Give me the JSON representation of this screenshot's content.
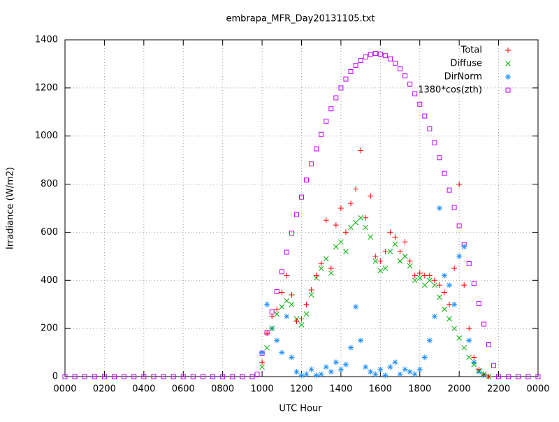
{
  "chart_data": {
    "type": "scatter",
    "title": "embrapa_MFR_Day20131105.txt",
    "xlabel": "UTC Hour",
    "ylabel": "Irradiance (W/m2)",
    "xlim": [
      0,
      24
    ],
    "xticks": [
      {
        "value": 0,
        "label": "0000"
      },
      {
        "value": 2,
        "label": "0200"
      },
      {
        "value": 4,
        "label": "0400"
      },
      {
        "value": 6,
        "label": "0600"
      },
      {
        "value": 8,
        "label": "0800"
      },
      {
        "value": 10,
        "label": "1000"
      },
      {
        "value": 12,
        "label": "1200"
      },
      {
        "value": 14,
        "label": "1400"
      },
      {
        "value": 16,
        "label": "1600"
      },
      {
        "value": 18,
        "label": "1800"
      },
      {
        "value": 20,
        "label": "2000"
      },
      {
        "value": 22,
        "label": "2200"
      },
      {
        "value": 24,
        "label": "0000"
      }
    ],
    "ylim": [
      0,
      1400
    ],
    "yticks": [
      0,
      200,
      400,
      600,
      800,
      1000,
      1200,
      1400
    ],
    "grid": true,
    "legend": "top-right",
    "series": [
      {
        "name": "Total",
        "color": "#ff0000",
        "marker": "plus",
        "x": [
          10.0,
          10.25,
          10.5,
          10.75,
          11.0,
          11.25,
          11.5,
          11.75,
          12.0,
          12.25,
          12.5,
          12.75,
          13.0,
          13.25,
          13.5,
          13.75,
          14.0,
          14.25,
          14.5,
          14.75,
          15.0,
          15.25,
          15.5,
          15.75,
          16.0,
          16.25,
          16.5,
          16.75,
          17.0,
          17.25,
          17.5,
          17.75,
          18.0,
          18.25,
          18.5,
          18.75,
          19.0,
          19.25,
          19.5,
          19.75,
          20.0,
          20.25,
          20.5,
          20.75,
          21.0,
          21.25,
          21.5
        ],
        "values": [
          60,
          180,
          250,
          280,
          350,
          420,
          340,
          230,
          240,
          300,
          360,
          420,
          470,
          650,
          450,
          630,
          700,
          600,
          720,
          780,
          940,
          660,
          750,
          500,
          480,
          520,
          600,
          580,
          520,
          560,
          480,
          420,
          430,
          420,
          420,
          400,
          380,
          350,
          300,
          450,
          800,
          380,
          200,
          80,
          30,
          10,
          0
        ]
      },
      {
        "name": "Diffuse",
        "color": "#00b000",
        "marker": "cross",
        "x": [
          10.0,
          10.25,
          10.5,
          10.75,
          11.0,
          11.25,
          11.5,
          11.75,
          12.0,
          12.25,
          12.5,
          12.75,
          13.0,
          13.25,
          13.5,
          13.75,
          14.0,
          14.25,
          14.5,
          14.75,
          15.0,
          15.25,
          15.5,
          15.75,
          16.0,
          16.25,
          16.5,
          16.75,
          17.0,
          17.25,
          17.5,
          17.75,
          18.0,
          18.25,
          18.5,
          18.75,
          19.0,
          19.25,
          19.5,
          19.75,
          20.0,
          20.25,
          20.5,
          20.75,
          21.0,
          21.25,
          21.5
        ],
        "values": [
          40,
          120,
          200,
          260,
          290,
          315,
          300,
          240,
          215,
          260,
          340,
          410,
          450,
          490,
          430,
          540,
          560,
          520,
          620,
          640,
          660,
          620,
          580,
          480,
          440,
          450,
          520,
          550,
          480,
          500,
          460,
          400,
          410,
          380,
          400,
          380,
          330,
          280,
          240,
          200,
          160,
          120,
          80,
          50,
          25,
          10,
          0
        ]
      },
      {
        "name": "DirNorm",
        "color": "#1e90ff",
        "marker": "star",
        "x": [
          10.0,
          10.25,
          10.5,
          10.75,
          11.0,
          11.25,
          11.5,
          11.75,
          12.0,
          12.25,
          12.5,
          12.75,
          13.0,
          13.25,
          13.5,
          13.75,
          14.0,
          14.25,
          14.5,
          14.75,
          15.0,
          15.25,
          15.5,
          15.75,
          16.0,
          16.25,
          16.5,
          16.75,
          17.0,
          17.25,
          17.5,
          17.75,
          18.0,
          18.25,
          18.5,
          18.75,
          19.0,
          19.25,
          19.5,
          19.75,
          20.0,
          20.25,
          20.5,
          20.75,
          21.0,
          21.25,
          21.5
        ],
        "values": [
          100,
          300,
          200,
          150,
          100,
          250,
          80,
          20,
          5,
          10,
          30,
          5,
          10,
          40,
          20,
          60,
          30,
          50,
          120,
          290,
          150,
          40,
          20,
          10,
          30,
          5,
          40,
          60,
          10,
          30,
          20,
          10,
          30,
          80,
          150,
          250,
          700,
          420,
          380,
          300,
          500,
          540,
          150,
          60,
          20,
          5,
          0
        ]
      },
      {
        "name": "1380*cos(zth)",
        "color": "#c000ff",
        "marker": "square",
        "x": [
          0,
          0.5,
          1,
          1.5,
          2,
          2.5,
          3,
          3.5,
          4,
          4.5,
          5,
          5.5,
          6,
          6.5,
          7,
          7.5,
          8,
          8.5,
          9,
          9.5,
          9.75,
          10.0,
          10.25,
          10.5,
          10.75,
          11.0,
          11.25,
          11.5,
          11.75,
          12.0,
          12.25,
          12.5,
          12.75,
          13.0,
          13.25,
          13.5,
          13.75,
          14.0,
          14.25,
          14.5,
          14.75,
          15.0,
          15.25,
          15.5,
          15.75,
          16.0,
          16.25,
          16.5,
          16.75,
          17.0,
          17.25,
          17.5,
          17.75,
          18.0,
          18.25,
          18.5,
          18.75,
          19.0,
          19.25,
          19.5,
          19.75,
          20.0,
          20.25,
          20.5,
          20.75,
          21.0,
          21.25,
          21.5,
          21.75,
          22,
          22.5,
          23,
          23.5,
          24
        ],
        "values": [
          0,
          0,
          0,
          0,
          0,
          0,
          0,
          0,
          0,
          0,
          0,
          0,
          0,
          0,
          0,
          0,
          0,
          0,
          0,
          0,
          10,
          97,
          183,
          269,
          353,
          436,
          517,
          596,
          673,
          746,
          817,
          884,
          947,
          1007,
          1062,
          1113,
          1159,
          1200,
          1237,
          1268,
          1294,
          1314,
          1329,
          1339,
          1343,
          1341,
          1334,
          1321,
          1303,
          1279,
          1250,
          1216,
          1176,
          1132,
          1083,
          1030,
          972,
          910,
          845,
          775,
          703,
          627,
          549,
          469,
          387,
          303,
          218,
          132,
          46,
          0,
          0,
          0,
          0,
          0
        ]
      }
    ]
  }
}
